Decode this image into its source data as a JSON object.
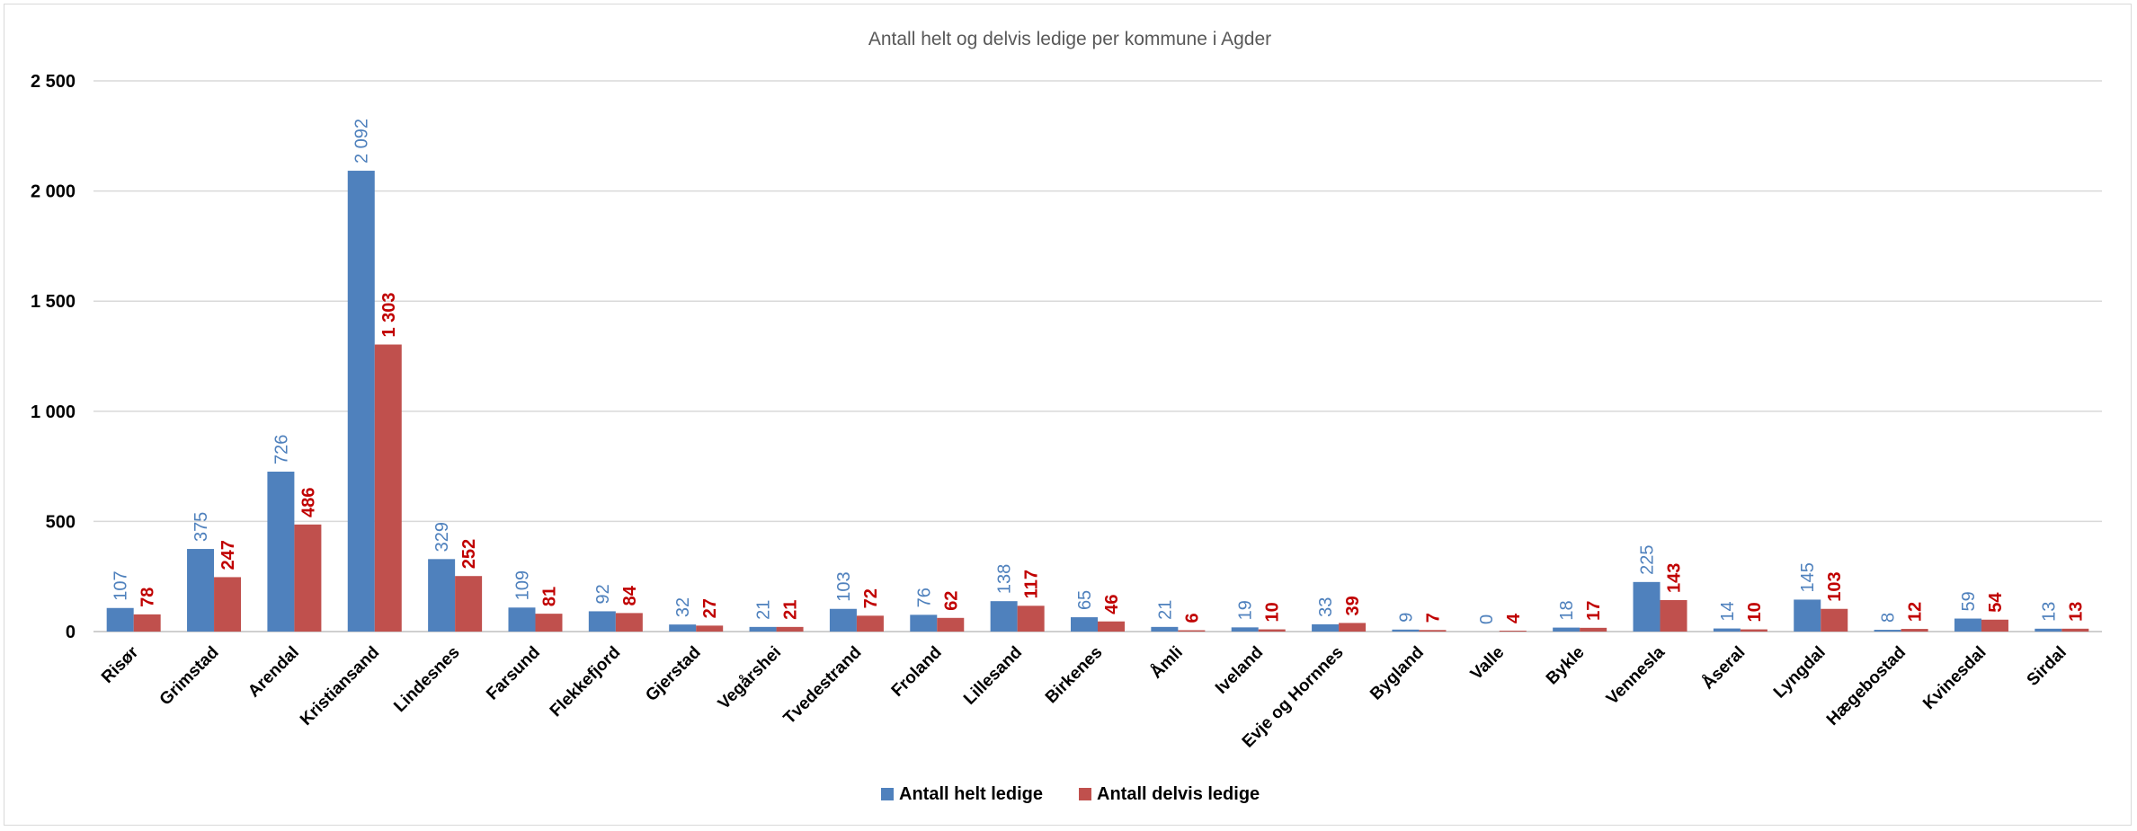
{
  "chart_data": {
    "type": "bar",
    "title": "Antall helt og delvis ledige per kommune i Agder",
    "xlabel": "",
    "ylabel": "",
    "ylim": [
      0,
      2500
    ],
    "yticks": [
      0,
      500,
      1000,
      1500,
      2000,
      2500
    ],
    "ytick_labels": [
      "0",
      "500",
      "1 000",
      "1 500",
      "2 000",
      "2 500"
    ],
    "grid": true,
    "legend_position": "bottom",
    "categories": [
      "Risør",
      "Grimstad",
      "Arendal",
      "Kristiansand",
      "Lindesnes",
      "Farsund",
      "Flekkefjord",
      "Gjerstad",
      "Vegårshei",
      "Tvedestrand",
      "Froland",
      "Lillesand",
      "Birkenes",
      "Åmli",
      "Iveland",
      "Evje og Hornnes",
      "Bygland",
      "Valle",
      "Bykle",
      "Vennesla",
      "Åseral",
      "Lyngdal",
      "Hægebostad",
      "Kvinesdal",
      "Sirdal"
    ],
    "series": [
      {
        "name": "Antall helt ledige",
        "color": "#4f81bd",
        "values": [
          107,
          375,
          726,
          2092,
          329,
          109,
          92,
          32,
          21,
          103,
          76,
          138,
          65,
          21,
          19,
          33,
          9,
          0,
          18,
          225,
          14,
          145,
          8,
          59,
          13
        ],
        "labels": [
          "107",
          "375",
          "726",
          "2 092",
          "329",
          "109",
          "92",
          "32",
          "21",
          "103",
          "76",
          "138",
          "65",
          "21",
          "19",
          "33",
          "9",
          "0",
          "18",
          "225",
          "14",
          "145",
          "8",
          "59",
          "13"
        ]
      },
      {
        "name": "Antall delvis ledige",
        "color": "#c0504d",
        "label_color": "#c00000",
        "values": [
          78,
          247,
          486,
          1303,
          252,
          81,
          84,
          27,
          21,
          72,
          62,
          117,
          46,
          6,
          10,
          39,
          7,
          4,
          17,
          143,
          10,
          103,
          12,
          54,
          13
        ],
        "labels": [
          "78",
          "247",
          "486",
          "1 303",
          "252",
          "81",
          "84",
          "27",
          "21",
          "72",
          "62",
          "117",
          "46",
          "6",
          "10",
          "39",
          "7",
          "4",
          "17",
          "143",
          "10",
          "103",
          "12",
          "54",
          "13"
        ]
      }
    ]
  }
}
